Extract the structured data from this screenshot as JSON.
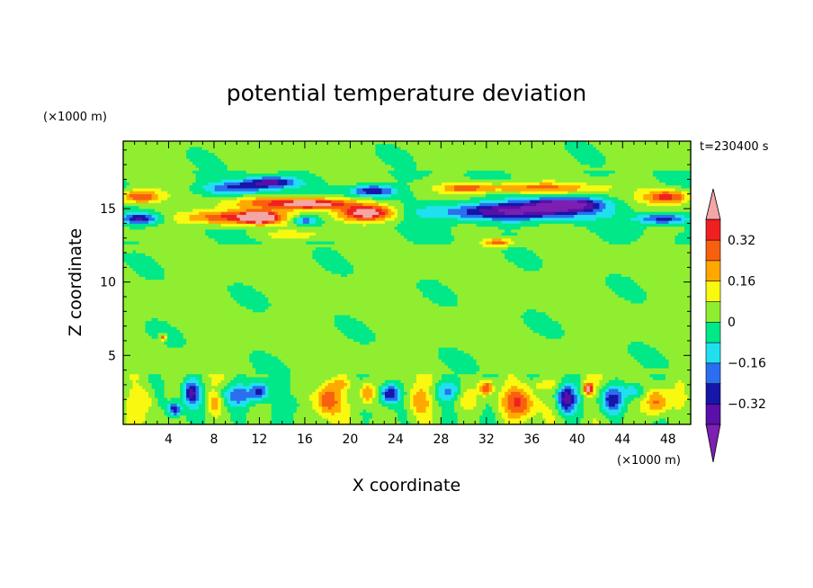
{
  "chart_data": {
    "type": "heatmap",
    "title": "potential temperature deviation",
    "xlabel": "X coordinate",
    "ylabel": "Z coordinate",
    "x_unit": "(×1000 m)",
    "y_unit": "(×1000 m)",
    "time_label": "t=230400 s",
    "xlim": [
      0,
      50
    ],
    "ylim": [
      0.3,
      19.6
    ],
    "x_ticks": [
      4,
      8,
      12,
      16,
      20,
      24,
      28,
      32,
      36,
      40,
      44,
      48
    ],
    "x_tick_labels": [
      "4",
      "8",
      "12",
      "16",
      "20",
      "24",
      "28",
      "32",
      "36",
      "40",
      "44",
      "48"
    ],
    "y_ticks": [
      5,
      10,
      15
    ],
    "y_tick_labels": [
      "5",
      "10",
      "15"
    ],
    "colorbar": {
      "levels": [
        -0.4,
        -0.32,
        -0.24,
        -0.16,
        -0.08,
        0,
        0.08,
        0.16,
        0.24,
        0.32,
        0.4
      ],
      "tick_values": [
        0.32,
        0.16,
        0,
        -0.16,
        -0.32
      ],
      "tick_labels": [
        "0.32",
        "0.16",
        "0",
        "−0.16",
        "−0.32"
      ],
      "over_color": "#f4a6a6",
      "under_color": "#7d1fb2",
      "colors": [
        "#5a0fa8",
        "#1616a8",
        "#2b6ff0",
        "#20e0f0",
        "#00e888",
        "#90ee30",
        "#f8f810",
        "#ffa800",
        "#f86010",
        "#f02020"
      ]
    },
    "background_value": 0.03,
    "features": [
      {
        "x": 10,
        "z": 16.4,
        "sx": 3.0,
        "sz": 0.45,
        "v": -0.26
      },
      {
        "x": 13,
        "z": 16.8,
        "sx": 2.2,
        "sz": 0.35,
        "v": -0.34
      },
      {
        "x": 1.5,
        "z": 15.8,
        "sx": 1.8,
        "sz": 0.45,
        "v": 0.34
      },
      {
        "x": 48,
        "z": 15.8,
        "sx": 2.0,
        "sz": 0.45,
        "v": 0.34
      },
      {
        "x": 14,
        "z": 15.4,
        "sx": 5.0,
        "sz": 0.4,
        "v": 0.25
      },
      {
        "x": 1.5,
        "z": 14.3,
        "sx": 1.6,
        "sz": 0.35,
        "v": -0.34
      },
      {
        "x": 47.5,
        "z": 14.3,
        "sx": 2.2,
        "sz": 0.35,
        "v": -0.3
      },
      {
        "x": 10,
        "z": 14.4,
        "sx": 4.5,
        "sz": 0.5,
        "v": 0.38
      },
      {
        "x": 12,
        "z": 14.4,
        "sx": 1.2,
        "sz": 0.35,
        "v": 0.44
      },
      {
        "x": 21.5,
        "z": 14.7,
        "sx": 2.5,
        "sz": 0.55,
        "v": 0.48
      },
      {
        "x": 17,
        "z": 15.3,
        "sx": 3.0,
        "sz": 0.35,
        "v": 0.34
      },
      {
        "x": 16,
        "z": 14.2,
        "sx": 1.2,
        "sz": 0.3,
        "v": -0.28
      },
      {
        "x": 22,
        "z": 16.2,
        "sx": 2.0,
        "sz": 0.4,
        "v": -0.34
      },
      {
        "x": 34,
        "z": 14.8,
        "sx": 6.5,
        "sz": 0.6,
        "v": -0.42
      },
      {
        "x": 39,
        "z": 15.3,
        "sx": 3.0,
        "sz": 0.45,
        "v": -0.46
      },
      {
        "x": 36,
        "z": 16.4,
        "sx": 6.0,
        "sz": 0.35,
        "v": 0.25
      },
      {
        "x": 30,
        "z": 16.4,
        "sx": 2.0,
        "sz": 0.35,
        "v": 0.2
      },
      {
        "x": 33,
        "z": 12.7,
        "sx": 1.4,
        "sz": 0.25,
        "v": 0.3
      },
      {
        "x": 15,
        "z": 13.2,
        "sx": 3.0,
        "sz": 0.3,
        "v": 0.12
      },
      {
        "x": 3.5,
        "z": 6.2,
        "sx": 0.25,
        "sz": 0.2,
        "v": 0.32
      },
      {
        "x": 6,
        "z": 2.5,
        "sx": 0.7,
        "sz": 0.8,
        "v": -0.32
      },
      {
        "x": 10,
        "z": 2.3,
        "sx": 1.8,
        "sz": 0.8,
        "v": -0.24
      },
      {
        "x": 12,
        "z": 2.6,
        "sx": 0.8,
        "sz": 0.7,
        "v": -0.3
      },
      {
        "x": 4.5,
        "z": 1.3,
        "sx": 0.6,
        "sz": 0.5,
        "v": -0.34
      },
      {
        "x": 2,
        "z": 2.0,
        "sx": 0.8,
        "sz": 0.8,
        "v": 0.12
      },
      {
        "x": 8,
        "z": 1.8,
        "sx": 0.7,
        "sz": 0.7,
        "v": 0.2
      },
      {
        "x": 18,
        "z": 2.0,
        "sx": 1.0,
        "sz": 1.0,
        "v": 0.3
      },
      {
        "x": 21.5,
        "z": 2.4,
        "sx": 0.7,
        "sz": 0.8,
        "v": 0.28
      },
      {
        "x": 23.5,
        "z": 2.4,
        "sx": 0.8,
        "sz": 0.7,
        "v": -0.36
      },
      {
        "x": 26,
        "z": 1.8,
        "sx": 1.0,
        "sz": 1.0,
        "v": 0.18
      },
      {
        "x": 28.5,
        "z": 2.5,
        "sx": 1.5,
        "sz": 0.7,
        "v": -0.18
      },
      {
        "x": 32,
        "z": 2.8,
        "sx": 0.6,
        "sz": 0.5,
        "v": 0.32
      },
      {
        "x": 35,
        "z": 1.8,
        "sx": 1.5,
        "sz": 1.0,
        "v": 0.25
      },
      {
        "x": 39,
        "z": 2.0,
        "sx": 0.8,
        "sz": 0.9,
        "v": -0.36
      },
      {
        "x": 41,
        "z": 2.7,
        "sx": 0.4,
        "sz": 0.4,
        "v": 0.46
      },
      {
        "x": 43,
        "z": 2.0,
        "sx": 1.0,
        "sz": 0.9,
        "v": -0.3
      },
      {
        "x": 47,
        "z": 1.8,
        "sx": 1.0,
        "sz": 1.0,
        "v": 0.28
      },
      {
        "x": 30,
        "z": 2.0,
        "sx": 1.0,
        "sz": 0.7,
        "v": 0.1
      },
      {
        "x": 15,
        "z": 1.6,
        "sx": 1.2,
        "sz": 0.7,
        "v": -0.1
      },
      {
        "x": 45,
        "z": 2.6,
        "sx": 1.0,
        "sz": 0.6,
        "v": -0.2
      },
      {
        "x": 19,
        "z": 3.0,
        "sx": 1.2,
        "sz": 0.4,
        "v": 0.12
      },
      {
        "x": 37,
        "z": 3.0,
        "sx": 1.5,
        "sz": 0.4,
        "v": 0.1
      }
    ]
  }
}
